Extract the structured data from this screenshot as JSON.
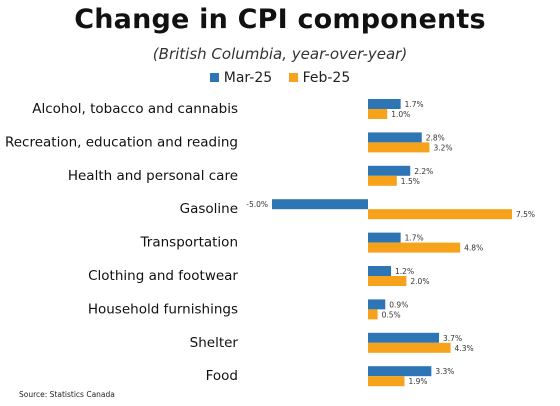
{
  "chart_data": {
    "type": "bar",
    "orientation": "horizontal",
    "title": "Change in CPI components",
    "subtitle": "(British Columbia, year-over-year)",
    "categories": [
      "Alcohol, tobacco and cannabis",
      "Recreation, education and reading",
      "Health and personal care",
      "Gasoline",
      "Transportation",
      "Clothing and footwear",
      "Household furnishings",
      "Shelter",
      "Food"
    ],
    "series": [
      {
        "name": "Mar-25",
        "color": "#2e75b6",
        "values": [
          1.7,
          2.8,
          2.2,
          -5.0,
          1.7,
          1.2,
          0.9,
          3.7,
          3.3
        ],
        "labels": [
          "1.7%",
          "2.8%",
          "2.2%",
          "-5.0%",
          "1.7%",
          "1.2%",
          "0.9%",
          "3.7%",
          "3.3%"
        ]
      },
      {
        "name": "Feb-25",
        "color": "#f7a21b",
        "values": [
          1.0,
          3.2,
          1.5,
          7.5,
          4.8,
          2.0,
          0.5,
          4.3,
          1.9
        ],
        "labels": [
          "1.0%",
          "3.2%",
          "1.5%",
          "7.5%",
          "4.8%",
          "2.0%",
          "0.5%",
          "4.3%",
          "1.9%"
        ]
      }
    ],
    "legend_position": "top-center",
    "grid": false,
    "xlim": [
      -5,
      8
    ]
  },
  "source": "Source: Statistics Canada"
}
